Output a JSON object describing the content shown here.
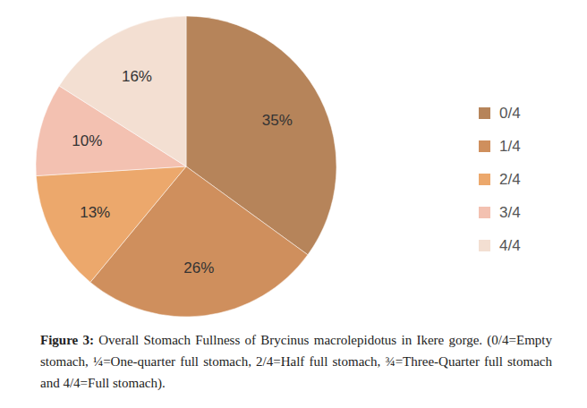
{
  "chart_data": {
    "type": "pie",
    "title": "Figure 3: Overall Stomach Fullness of Brycinus macrolepidotus in Ikere gorge. (0/4=Empty stomach, ¼=One-quarter full stomach, 2/4=Half full stomach, ¾=Three-Quarter full stomach and 4/4=Full stomach).",
    "categories": [
      "0/4",
      "1/4",
      "2/4",
      "3/4",
      "4/4"
    ],
    "values": [
      35,
      26,
      13,
      10,
      16
    ],
    "value_labels": [
      "35%",
      "26%",
      "13%",
      "10%",
      "16%"
    ],
    "colors": [
      "#b6845a",
      "#cf8f5d",
      "#eca86c",
      "#f3c1b1",
      "#f3dfd2"
    ],
    "data_labels": true,
    "legend": "right"
  }
}
